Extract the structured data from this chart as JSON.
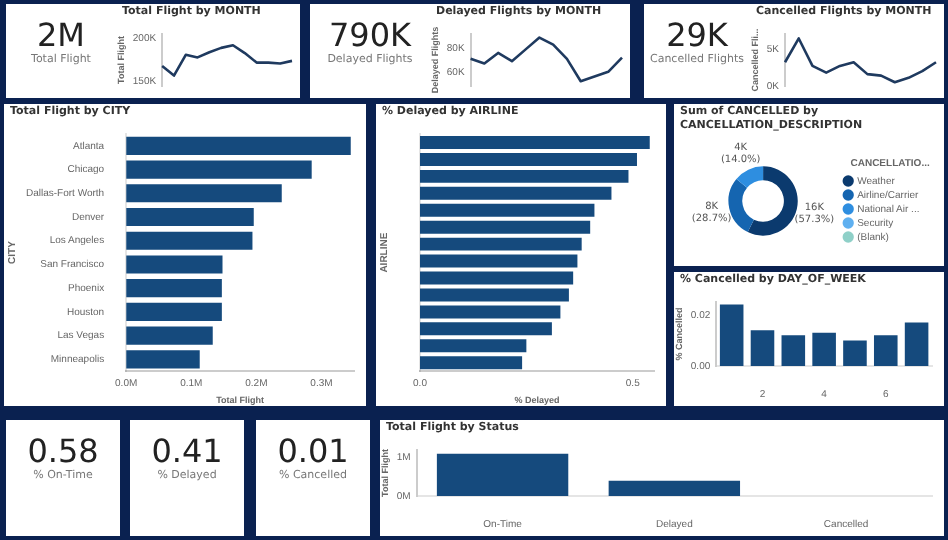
{
  "chart_data": [
    {
      "type": "other",
      "annotations": [
        "2M",
        "Total Flight"
      ]
    },
    {
      "type": "line",
      "title": "Total Flight by MONTH",
      "ylabel": "Total Flight",
      "categories": [
        null,
        null,
        null,
        null,
        null,
        null,
        null,
        null,
        null,
        null,
        null,
        null
      ],
      "values": [
        168000,
        157000,
        181000,
        178000,
        184000,
        189000,
        192000,
        183000,
        172000,
        172000,
        171000,
        174000
      ],
      "color": "#1f3a5f",
      "ylim": [
        145000,
        205000
      ],
      "yticks": [
        {
          "value": 150000,
          "label": "150K"
        },
        {
          "value": 200000,
          "label": "200K"
        }
      ],
      "tick_labels": "y",
      "marker": "none"
    },
    {
      "type": "other",
      "annotations": [
        "790K",
        "Delayed Flights"
      ]
    },
    {
      "type": "line",
      "title": "Delayed Flights by MONTH",
      "ylabel": "Delayed Flights",
      "categories": [
        null,
        null,
        null,
        null,
        null,
        null,
        null,
        null,
        null,
        null,
        null,
        null
      ],
      "values": [
        71000,
        67000,
        76000,
        69000,
        79000,
        89000,
        83000,
        71000,
        52000,
        56000,
        60000,
        72000
      ],
      "color": "#1f3a5f",
      "ylim": [
        48000,
        92000
      ],
      "yticks": [
        {
          "value": 60000,
          "label": "60K"
        },
        {
          "value": 80000,
          "label": "80K"
        }
      ],
      "tick_labels": "y",
      "marker": "none"
    },
    {
      "type": "other",
      "annotations": [
        "29K",
        "Cancelled Flights"
      ]
    },
    {
      "type": "line",
      "title": "Cancelled Flights by MONTH",
      "ylabel": "Cancelled Fli...",
      "categories": [
        null,
        null,
        null,
        null,
        null,
        null,
        null,
        null,
        null,
        null,
        null,
        null
      ],
      "values": [
        3200,
        6400,
        2700,
        1800,
        2700,
        3200,
        1600,
        1400,
        500,
        1100,
        2000,
        3200
      ],
      "color": "#1f3a5f",
      "ylim": [
        0,
        7000
      ],
      "yticks": [
        {
          "value": 0,
          "label": "0K"
        },
        {
          "value": 5000,
          "label": "5K"
        }
      ],
      "tick_labels": "y",
      "marker": "none"
    },
    {
      "type": "bar",
      "orientation": "horizontal",
      "title": "Total Flight by CITY",
      "xlabel": "Total Flight",
      "ylabel": "CITY",
      "categories": [
        "Atlanta",
        "Chicago",
        "Dallas-Fort Worth",
        "Denver",
        "Los Angeles",
        "San Francisco",
        "Phoenix",
        "Houston",
        "Las Vegas",
        "Minneapolis"
      ],
      "values": [
        0.345,
        0.285,
        0.239,
        0.196,
        0.194,
        0.148,
        0.147,
        0.147,
        0.133,
        0.113
      ],
      "color": "#154a7d",
      "xlim": [
        0,
        0.35
      ],
      "xticks": [
        {
          "value": 0,
          "label": "0.0M"
        },
        {
          "value": 0.1,
          "label": "0.1M"
        },
        {
          "value": 0.2,
          "label": "0.2M"
        },
        {
          "value": 0.3,
          "label": "0.3M"
        }
      ]
    },
    {
      "type": "bar",
      "orientation": "horizontal",
      "title": "% Delayed by AIRLINE",
      "xlabel": "% Delayed",
      "ylabel": "AIRLINE",
      "categories": [
        null,
        null,
        null,
        null,
        null,
        null,
        null,
        null,
        null,
        null,
        null,
        null,
        null,
        null
      ],
      "values": [
        0.54,
        0.51,
        0.49,
        0.45,
        0.41,
        0.4,
        0.38,
        0.37,
        0.36,
        0.35,
        0.33,
        0.31,
        0.25,
        0.24
      ],
      "color": "#154a7d",
      "xlim": [
        0,
        0.55
      ],
      "xticks": [
        {
          "value": 0,
          "label": "0.0"
        },
        {
          "value": 0.5,
          "label": "0.5"
        }
      ]
    },
    {
      "type": "donut",
      "title": "Sum of CANCELLED by CANCELLATION_DESCRIPTION",
      "legend_title": "CANCELLATIO...",
      "legend": "right",
      "categories": [
        "Weather",
        "Airline/Carrier",
        "National Air ...",
        "Security",
        "(Blank)"
      ],
      "values": [
        57.3,
        28.7,
        14.0,
        0,
        0
      ],
      "colors": [
        "#0b3a6e",
        "#1565b0",
        "#2e8ee0",
        "#5fb0f0",
        "#8fd0c8"
      ],
      "value_labels": [
        "16K (57.3%)",
        "8K (28.7%)",
        "4K (14.0%)",
        null,
        null
      ]
    },
    {
      "type": "bar",
      "title": "% Cancelled by DAY_OF_WEEK",
      "ylabel": "% Cancelled",
      "categories": [
        null,
        "2",
        null,
        "4",
        null,
        "6",
        null
      ],
      "values": [
        0.024,
        0.014,
        0.012,
        0.013,
        0.01,
        0.012,
        0.017
      ],
      "color": "#154a7d",
      "ylim": [
        0,
        0.025
      ],
      "yticks": [
        {
          "value": 0,
          "label": "0.00"
        },
        {
          "value": 0.02,
          "label": "0.02"
        }
      ]
    },
    {
      "type": "other",
      "annotations": [
        "0.58",
        "% On-Time"
      ]
    },
    {
      "type": "other",
      "annotations": [
        "0.41",
        "% Delayed"
      ]
    },
    {
      "type": "other",
      "annotations": [
        "0.01",
        "% Cancelled"
      ]
    },
    {
      "type": "bar",
      "title": "Total Flight by Status",
      "ylabel": "Total Flight",
      "categories": [
        "On-Time",
        "Delayed",
        "Cancelled"
      ],
      "values": [
        1.1,
        0.4,
        null
      ],
      "color": "#154a7d",
      "ylim": [
        0,
        1.2
      ],
      "yticks": [
        {
          "value": 0,
          "label": "0M"
        },
        {
          "value": 1,
          "label": "1M"
        }
      ]
    }
  ]
}
